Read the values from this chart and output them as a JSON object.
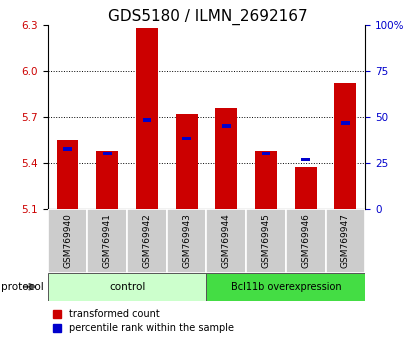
{
  "title": "GDS5180 / ILMN_2692167",
  "samples": [
    "GSM769940",
    "GSM769941",
    "GSM769942",
    "GSM769943",
    "GSM769944",
    "GSM769945",
    "GSM769946",
    "GSM769947"
  ],
  "red_bars": [
    5.55,
    5.48,
    6.28,
    5.72,
    5.76,
    5.48,
    5.37,
    5.92
  ],
  "blue_dots": [
    5.49,
    5.46,
    5.68,
    5.56,
    5.64,
    5.46,
    5.42,
    5.66
  ],
  "ymin": 5.1,
  "ymax": 6.3,
  "yticks_left": [
    5.1,
    5.4,
    5.7,
    6.0,
    6.3
  ],
  "yticks_right_vals": [
    0,
    25,
    50,
    75,
    100
  ],
  "yticks_right_labels": [
    "0",
    "25",
    "50",
    "75",
    "100%"
  ],
  "bar_color": "#cc0000",
  "blue_color": "#0000cc",
  "bar_bottom": 5.1,
  "title_fontsize": 11,
  "bar_width": 0.55,
  "ctrl_color": "#ccffcc",
  "bcl_color": "#44dd44",
  "sample_bg": "#cccccc"
}
